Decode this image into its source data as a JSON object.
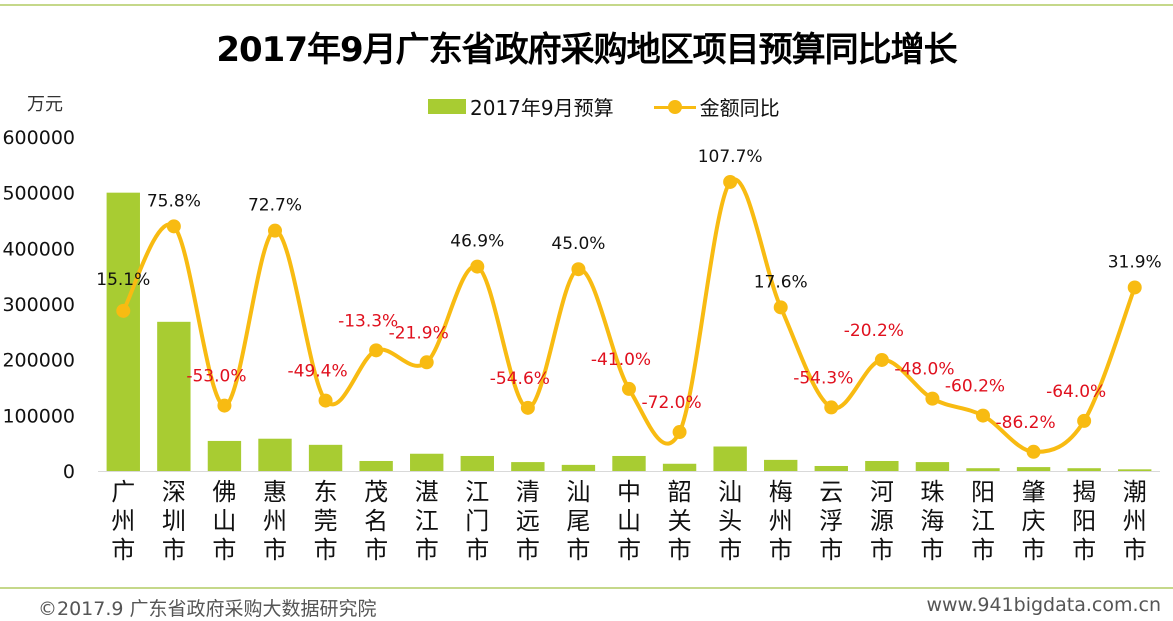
{
  "chart_data": {
    "type": "bar+line",
    "title": "2017年9月广东省政府采购地区项目预算同比增长",
    "ylabel": "万元",
    "ylim": [
      0,
      600000
    ],
    "yticks": [
      "0",
      "100000",
      "200000",
      "300000",
      "400000",
      "500000",
      "600000"
    ],
    "categories": [
      "广州市",
      "深圳市",
      "佛山市",
      "惠州市",
      "东莞市",
      "茂名市",
      "湛江市",
      "江门市",
      "清远市",
      "汕尾市",
      "中山市",
      "韶关市",
      "汕头市",
      "梅州市",
      "云浮市",
      "河源市",
      "珠海市",
      "阳江市",
      "肇庆市",
      "揭阳市",
      "潮州市"
    ],
    "legend_position": "top-center",
    "series": [
      {
        "name": "2017年9月预算",
        "type": "bar",
        "color": "#a8cc32",
        "values": [
          500000,
          268000,
          54000,
          58000,
          47000,
          18000,
          31000,
          27000,
          16000,
          11000,
          27000,
          13000,
          44000,
          20000,
          9000,
          18000,
          16000,
          5000,
          7000,
          5000,
          3000
        ]
      },
      {
        "name": "金额同比",
        "type": "line",
        "color": "#f8bb12",
        "values": [
          15.1,
          75.8,
          -53.0,
          72.7,
          -49.4,
          -13.3,
          -21.9,
          46.9,
          -54.6,
          45.0,
          -41.0,
          -72.0,
          107.7,
          17.6,
          -54.3,
          -20.2,
          -48.0,
          -60.2,
          -86.2,
          -64.0,
          31.9
        ],
        "labels": [
          "15.1%",
          "75.8%",
          "-53.0%",
          "72.7%",
          "-49.4%",
          "-13.3%",
          "-21.9%",
          "46.9%",
          "-54.6%",
          "45.0%",
          "-41.0%",
          "-72.0%",
          "107.7%",
          "17.6%",
          "-54.3%",
          "-20.2%",
          "-48.0%",
          "-60.2%",
          "-86.2%",
          "-64.0%",
          "31.9%"
        ],
        "positive_label_color": "#111111",
        "negative_label_color": "#e0101e"
      }
    ]
  },
  "footer": {
    "copyright": "©2017.9 广东省政府采购大数据研究院",
    "website": "www.941bigdata.com.cn"
  }
}
